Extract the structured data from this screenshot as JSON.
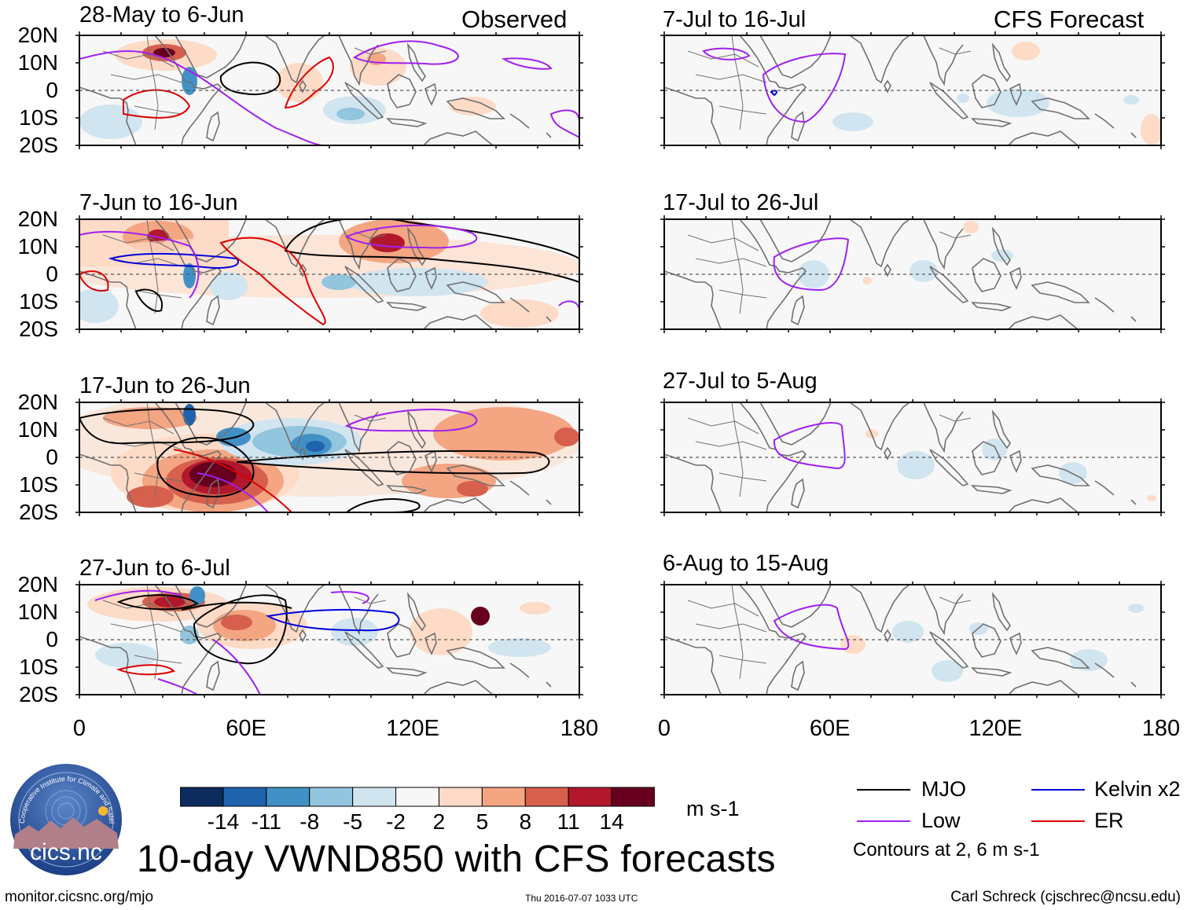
{
  "title": "10-day VWND850 with CFS forecasts",
  "columns": {
    "observed": "Observed",
    "forecast": "CFS Forecast"
  },
  "panels": {
    "observed": [
      "28-May to 6-Jun",
      "7-Jun to 16-Jun",
      "17-Jun to 26-Jun",
      "27-Jun to 6-Jul"
    ],
    "forecast": [
      "7-Jul to 16-Jul",
      "17-Jul to 26-Jul",
      "27-Jul to 5-Aug",
      "6-Aug to 15-Aug"
    ]
  },
  "lat_labels": [
    "20N",
    "10N",
    "0",
    "10S",
    "20S"
  ],
  "lon_labels": [
    "0",
    "60E",
    "120E",
    "180"
  ],
  "colorbar": {
    "ticks": [
      "-14",
      "-11",
      "-8",
      "-5",
      "-2",
      "2",
      "5",
      "8",
      "11",
      "14"
    ],
    "colors": [
      "#0b2c5c",
      "#1f63ad",
      "#4291c6",
      "#92c5de",
      "#d1e5f0",
      "#f7f7f7",
      "#fddbc7",
      "#f4a582",
      "#d6604d",
      "#b2182b",
      "#67001f"
    ],
    "units": "m s-1"
  },
  "legend": [
    {
      "label": "MJO",
      "color": "#000000"
    },
    {
      "label": "Kelvin x2",
      "color": "#0000dd"
    },
    {
      "label": "Low",
      "color": "#a020f0"
    },
    {
      "label": "ER",
      "color": "#dd0000"
    }
  ],
  "contour_note": "Contours at 2, 6 m s-1",
  "logo_text": "cics.nc",
  "logo_ring_text": "Cooperative Institute for Climate and Satellites",
  "footer": {
    "url": "monitor.cicsnc.org/mjo",
    "date": "Thu 2016-07-07 1033 UTC",
    "author": "Carl Schreck (cjschrec@ncsu.edu)"
  }
}
